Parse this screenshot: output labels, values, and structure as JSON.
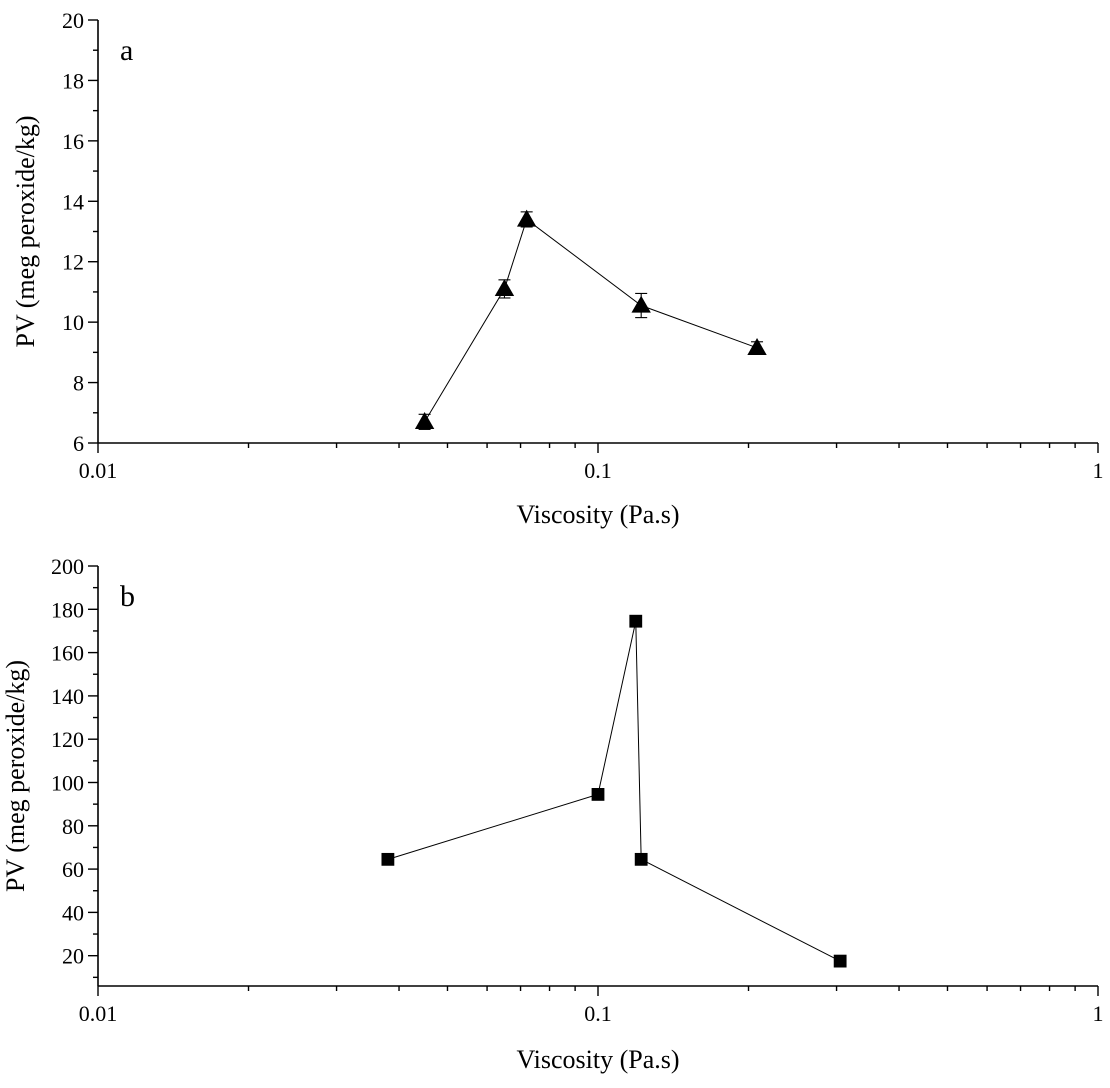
{
  "chart_data": [
    {
      "type": "line",
      "panel_label": "a",
      "xlabel": "Viscosity (Pa.s)",
      "ylabel": "PV (meg peroxide/kg)",
      "xscale": "log",
      "xlim": [
        0.01,
        1
      ],
      "ylim": [
        6,
        20
      ],
      "xticks": [
        0.01,
        0.1,
        1
      ],
      "xtick_labels": [
        "0.01",
        "0.1",
        "1"
      ],
      "yticks": [
        6,
        8,
        10,
        12,
        14,
        16,
        18,
        20
      ],
      "ytick_labels": [
        "6",
        "8",
        "10",
        "12",
        "14",
        "16",
        "18",
        "20"
      ],
      "grid": false,
      "marker": "triangle",
      "series": [
        {
          "x": [
            0.045,
            0.065,
            0.072,
            0.122,
            0.208
          ],
          "y": [
            6.7,
            11.1,
            13.4,
            10.55,
            9.15
          ],
          "error": [
            0.25,
            0.3,
            0.25,
            0.4,
            0.2
          ]
        }
      ]
    },
    {
      "type": "line",
      "panel_label": "b",
      "xlabel": "Viscosity (Pa.s)",
      "ylabel": "PV (meg peroxide/kg)",
      "xscale": "log",
      "xlim": [
        0.01,
        1
      ],
      "ylim": [
        6,
        200
      ],
      "xticks": [
        0.01,
        0.1,
        1
      ],
      "xtick_labels": [
        "0.01",
        "0.1",
        "1"
      ],
      "yticks": [
        20,
        40,
        60,
        80,
        100,
        120,
        140,
        160,
        180,
        200
      ],
      "ytick_labels": [
        "20",
        "40",
        "60",
        "80",
        "100",
        "120",
        "140",
        "160",
        "180",
        "200"
      ],
      "grid": false,
      "marker": "square",
      "series": [
        {
          "x": [
            0.038,
            0.1,
            0.119,
            0.122,
            0.305
          ],
          "y": [
            64.5,
            94.5,
            174.5,
            64.5,
            17.5
          ]
        }
      ]
    }
  ]
}
